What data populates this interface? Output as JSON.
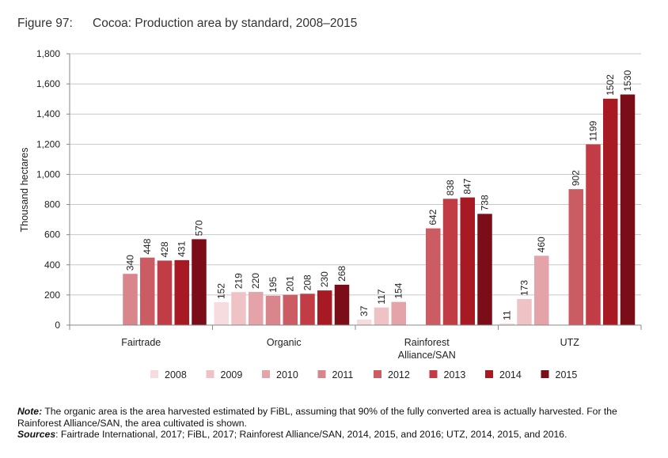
{
  "figure": {
    "number": "Figure 97:",
    "title": "Cocoa: Production area by standard, 2008–2015"
  },
  "chart_data": {
    "type": "bar",
    "title": "Cocoa: Production area by standard, 2008–2015",
    "xlabel": "",
    "ylabel": "Thousand hectares",
    "ylim": [
      0,
      1800
    ],
    "yticks": [
      0,
      200,
      400,
      600,
      800,
      1000,
      1200,
      1400,
      1600,
      1800
    ],
    "ytick_labels": [
      "0",
      "200",
      "400",
      "600",
      "800",
      "1,000",
      "1,200",
      "1,400",
      "1,600",
      "1,800"
    ],
    "categories": [
      "Fairtrade",
      "Organic",
      "Rainforest Alliance/SAN",
      "UTZ"
    ],
    "category_labels": [
      [
        "Fairtrade"
      ],
      [
        "Organic"
      ],
      [
        "Rainforest",
        "Alliance/SAN"
      ],
      [
        "UTZ"
      ]
    ],
    "legend_position": "bottom",
    "series": [
      {
        "name": "2008",
        "color": "#f7dcdf",
        "values": [
          null,
          152,
          37,
          11
        ]
      },
      {
        "name": "2009",
        "color": "#efc2c6",
        "values": [
          null,
          219,
          117,
          173
        ]
      },
      {
        "name": "2010",
        "color": "#e3a3a8",
        "values": [
          null,
          220,
          154,
          460
        ]
      },
      {
        "name": "2011",
        "color": "#d9858c",
        "values": [
          340,
          195,
          null,
          null
        ]
      },
      {
        "name": "2012",
        "color": "#cc5c63",
        "values": [
          448,
          201,
          642,
          902
        ]
      },
      {
        "name": "2013",
        "color": "#c13c44",
        "values": [
          428,
          208,
          838,
          1199
        ]
      },
      {
        "name": "2014",
        "color": "#a71a24",
        "values": [
          431,
          230,
          847,
          1502
        ]
      },
      {
        "name": "2015",
        "color": "#7a0d17",
        "values": [
          570,
          268,
          738,
          1530
        ]
      }
    ]
  },
  "note": {
    "note_label": "Note:",
    "note_text": " The organic area is the area harvested estimated by FiBL, assuming that 90% of the fully converted area is actually harvested. For the Rainforest Alliance/SAN, the area cultivated is shown.",
    "sources_label": "Sources",
    "sources_text": ": Fairtrade International, 2017; FiBL, 2017; Rainforest Alliance/SAN, 2014, 2015, and 2016; UTZ, 2014, 2015, and 2016."
  }
}
